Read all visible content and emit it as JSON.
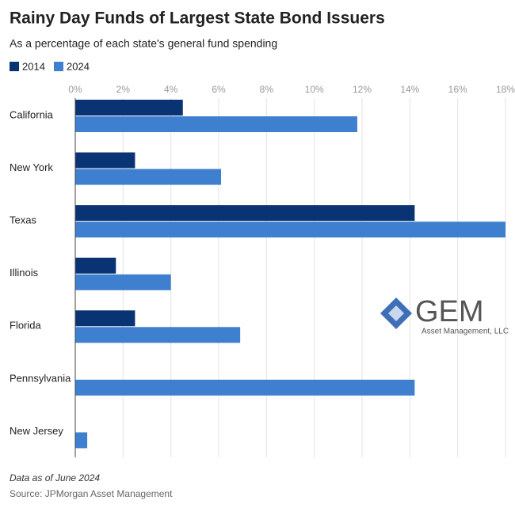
{
  "chart_data": {
    "type": "hbar",
    "title": "Rainy Day Funds of Largest State Bond Issuers",
    "subtitle": "As a percentage of each state's general fund spending",
    "note": "Data as of June 2024",
    "source": "Source: JPMorgan Asset Management",
    "categories": [
      "California",
      "New York",
      "Texas",
      "Illinois",
      "Florida",
      "Pennsylvania",
      "New Jersey"
    ],
    "series": [
      {
        "name": "2014",
        "color": "#0a3373",
        "values": [
          4.5,
          2.5,
          14.2,
          1.7,
          2.5,
          0,
          0
        ]
      },
      {
        "name": "2024",
        "color": "#3f7fcf",
        "values": [
          11.8,
          6.1,
          18.0,
          4.0,
          6.9,
          14.2,
          0.5
        ]
      }
    ],
    "xlim": [
      0,
      18
    ],
    "xticks": [
      {
        "value": 0,
        "label": "0%"
      },
      {
        "value": 2,
        "label": "2%"
      },
      {
        "value": 4,
        "label": "4%"
      },
      {
        "value": 6,
        "label": "6%"
      },
      {
        "value": 8,
        "label": "8%"
      },
      {
        "value": 10,
        "label": "10%"
      },
      {
        "value": 12,
        "label": "12%"
      },
      {
        "value": 14,
        "label": "14%"
      },
      {
        "value": 16,
        "label": "16%"
      },
      {
        "value": 18,
        "label": "18%"
      }
    ],
    "grid": true
  },
  "logo": {
    "name": "GEM",
    "tagline": "Asset Management, LLC"
  }
}
